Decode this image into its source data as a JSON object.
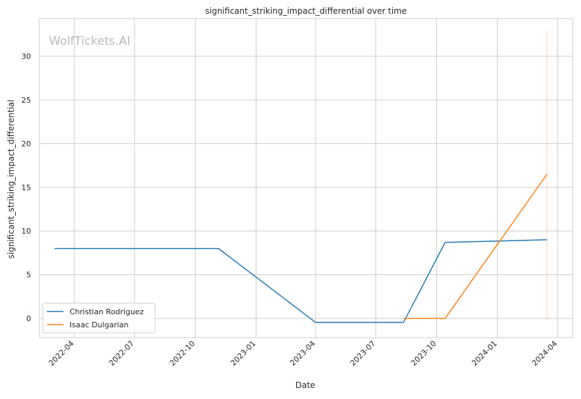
{
  "chart_data": {
    "type": "line",
    "title": "significant_striking_impact_differential over time",
    "xlabel": "Date",
    "ylabel": "significant_striking_impact_differential",
    "watermark": "WolfTickets.AI",
    "x_ticks": [
      "2022-04",
      "2022-07",
      "2022-10",
      "2023-01",
      "2023-04",
      "2023-07",
      "2023-10",
      "2024-01",
      "2024-04"
    ],
    "y_ticks": [
      0,
      5,
      10,
      15,
      20,
      25,
      30
    ],
    "xlim": [
      "2022-02-07",
      "2024-04-24"
    ],
    "ylim": [
      -2.2,
      34.3
    ],
    "grid": true,
    "legend_position": "lower-left",
    "series": [
      {
        "name": "Christian Rodriguez",
        "color": "#1f77b4",
        "points": [
          {
            "x": "2022-03-02",
            "y": 8.0
          },
          {
            "x": "2022-11-05",
            "y": 8.0
          },
          {
            "x": "2023-04-01",
            "y": -0.45
          },
          {
            "x": "2023-08-12",
            "y": -0.45
          },
          {
            "x": "2023-10-14",
            "y": 8.7
          },
          {
            "x": "2024-03-16",
            "y": 9.0
          }
        ]
      },
      {
        "name": "Isaac Dulgarian",
        "color": "#ff7f0e",
        "points": [
          {
            "x": "2023-08-12",
            "y": 0.0
          },
          {
            "x": "2023-10-14",
            "y": 0.0
          },
          {
            "x": "2024-03-16",
            "y": 16.5
          }
        ]
      }
    ],
    "vertical_marker": {
      "x": "2024-03-16",
      "y_from": 0.0,
      "y_to": 33.0,
      "color": "#ff7f0e"
    }
  }
}
